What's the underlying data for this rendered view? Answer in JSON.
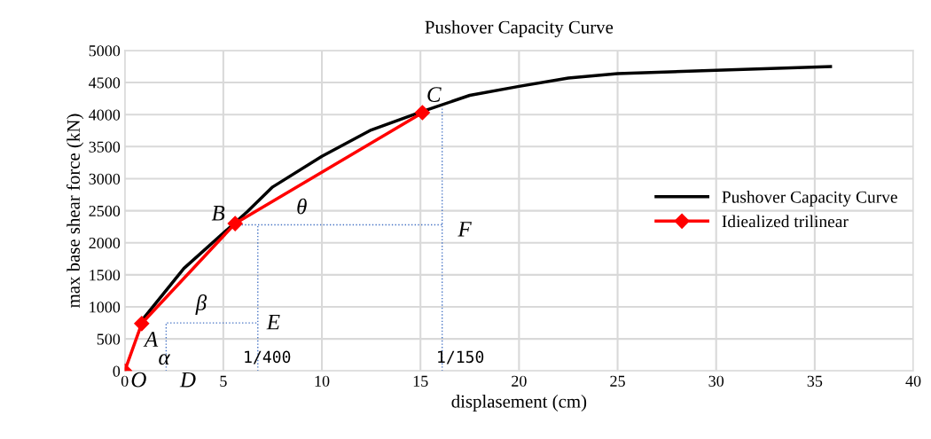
{
  "chart_data": {
    "type": "line",
    "title": "Pushover Capacity Curve",
    "xlabel": "displasement (cm)",
    "ylabel": "max base shear force (kN)",
    "xlim": [
      0,
      40
    ],
    "xticks": [
      0,
      5,
      10,
      15,
      20,
      25,
      30,
      35,
      40
    ],
    "ylim": [
      0,
      5000
    ],
    "yticks": [
      0,
      500,
      1000,
      1500,
      2000,
      2500,
      3000,
      3500,
      4000,
      4500,
      5000
    ],
    "grid": true,
    "legend": "right",
    "series": [
      {
        "name": "Pushover Capacity Curve",
        "color": "#000000",
        "marker": "none",
        "line_style": "solid",
        "x": [
          0.9,
          3,
          6.2,
          7.5,
          10,
          12.5,
          15.1,
          17.5,
          20,
          22.5,
          25,
          30,
          35.8
        ],
        "values": [
          800,
          1600,
          2480,
          2870,
          3350,
          3760,
          4050,
          4300,
          4440,
          4570,
          4640,
          4690,
          4750
        ]
      },
      {
        "name": "Idiealized trilinear",
        "color": "#ff0000",
        "marker": "diamond",
        "line_style": "solid",
        "x": [
          0,
          0.86,
          5.6,
          15.1
        ],
        "values": [
          0,
          740,
          2300,
          4030
        ]
      },
      {
        "color": "#4472c4",
        "marker": "none",
        "line_style": "dotted",
        "x": [
          2.1,
          2.1,
          6.75
        ],
        "values": [
          0,
          750,
          750
        ]
      },
      {
        "color": "#4472c4",
        "marker": "none",
        "line_style": "dotted",
        "x": [
          6.75,
          6.75
        ],
        "values": [
          0,
          2280
        ]
      },
      {
        "color": "#4472c4",
        "marker": "none",
        "line_style": "dotted",
        "x": [
          5.6,
          16.1
        ],
        "values": [
          2280,
          2280
        ]
      },
      {
        "color": "#4472c4",
        "marker": "none",
        "line_style": "dotted",
        "x": [
          16.1,
          16.1
        ],
        "values": [
          0,
          4100
        ]
      }
    ],
    "annotations": [
      "O",
      "A",
      "B",
      "C",
      "D",
      "E",
      "F",
      "α",
      "β",
      "θ",
      "1/400",
      "1/150"
    ]
  }
}
